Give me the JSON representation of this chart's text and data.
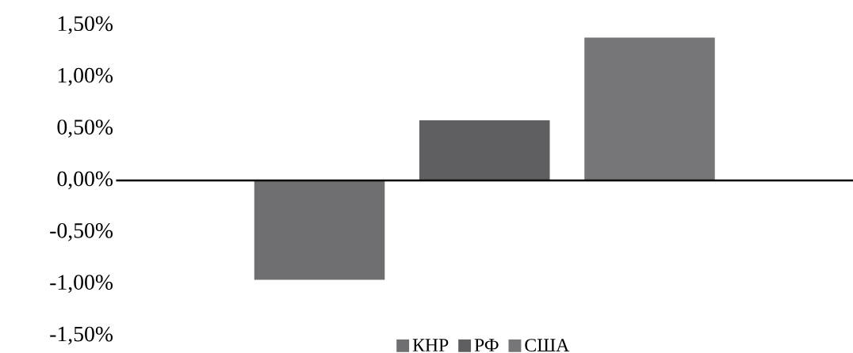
{
  "chart_data": {
    "type": "bar",
    "categories": [
      null
    ],
    "series": [
      {
        "name": "КНР",
        "color": "#6f6f72",
        "values": [
          -0.96
        ]
      },
      {
        "name": "РФ",
        "color": "#5f5f61",
        "values": [
          0.58
        ]
      },
      {
        "name": "США",
        "color": "#767679",
        "values": [
          1.38
        ]
      }
    ],
    "ylim": [
      -1.5,
      1.5
    ],
    "yticks": [
      {
        "value": -1.5,
        "label": "-1,50%"
      },
      {
        "value": -1.0,
        "label": "-1,00%"
      },
      {
        "value": -0.5,
        "label": "-0,50%"
      },
      {
        "value": 0.0,
        "label": "0,00%"
      },
      {
        "value": 0.5,
        "label": "0,50%"
      },
      {
        "value": 1.0,
        "label": "1,00%"
      },
      {
        "value": 1.5,
        "label": "1,50%"
      }
    ],
    "legend": "bottom"
  }
}
